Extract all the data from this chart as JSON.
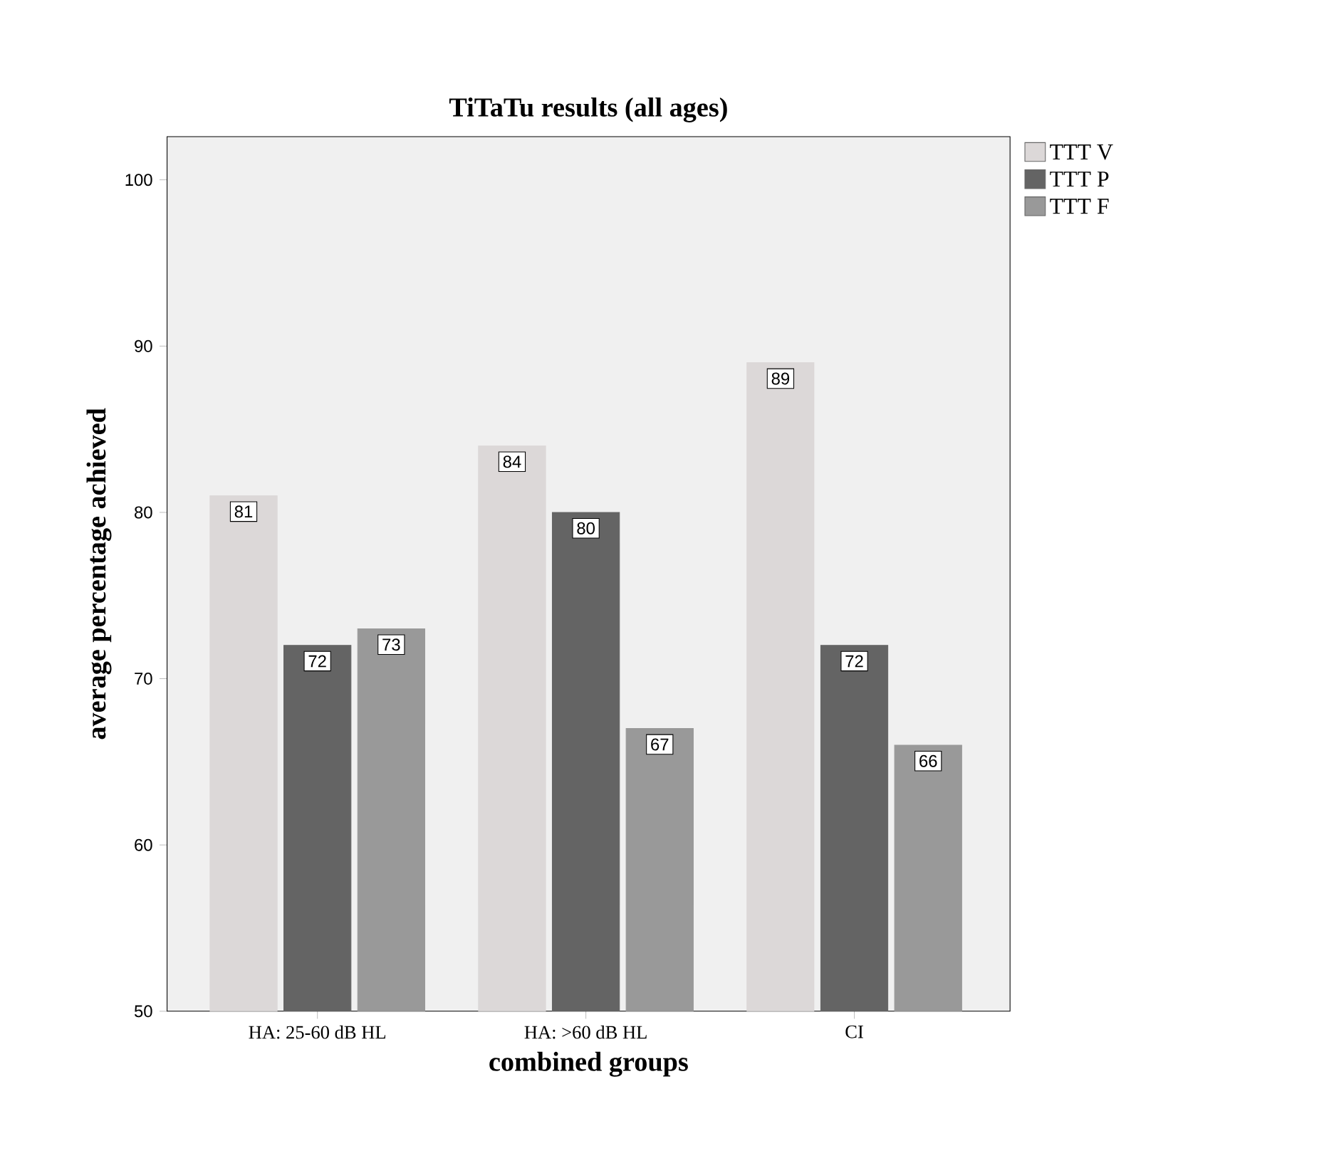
{
  "chart_data": {
    "type": "bar",
    "title": "TiTaTu results (all ages)",
    "xlabel": "combined groups",
    "ylabel": "average percentage achieved",
    "categories": [
      "HA: 25-60 dB HL",
      "HA: >60 dB HL",
      "CI"
    ],
    "series": [
      {
        "name": "TTT V",
        "color": "#dcd8d8",
        "values": [
          81,
          84,
          89
        ]
      },
      {
        "name": "TTT P",
        "color": "#646464",
        "values": [
          72,
          80,
          72
        ]
      },
      {
        "name": "TTT F",
        "color": "#999999",
        "values": [
          73,
          67,
          66
        ]
      }
    ],
    "ylim": [
      50,
      102.6
    ],
    "yticks": [
      50,
      60,
      70,
      80,
      90,
      100
    ],
    "grid": false,
    "legend": "top right",
    "data_labels": true
  }
}
